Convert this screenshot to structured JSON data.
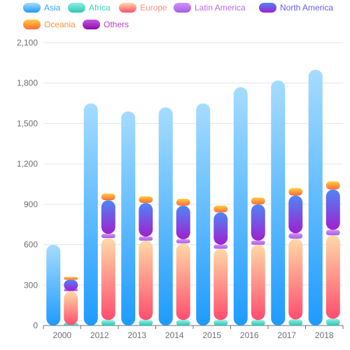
{
  "chart_data": {
    "type": "bar",
    "stacked_groups": true,
    "categories": [
      "2000",
      "2012",
      "2013",
      "2014",
      "2015",
      "2016",
      "2017",
      "2018"
    ],
    "ylim": [
      0,
      2100
    ],
    "yticks": [
      "0",
      "300",
      "600",
      "900",
      "1,200",
      "1,500",
      "1,800",
      "2,100"
    ],
    "grid": true,
    "legend_position": "top-left",
    "series": [
      {
        "name": "Asia",
        "stack": "a",
        "values": [
          600,
          1650,
          1590,
          1620,
          1650,
          1770,
          1820,
          1900
        ],
        "color_top": "#a5dcff",
        "color_bottom": "#1e9bff"
      },
      {
        "name": "Africa",
        "stack": "b",
        "values": [
          4,
          40,
          40,
          40,
          40,
          40,
          45,
          50
        ],
        "color_top": "#8ef0e2",
        "color_bottom": "#2fc5b6"
      },
      {
        "name": "Europe",
        "stack": "b",
        "values": [
          250,
          610,
          590,
          570,
          530,
          560,
          600,
          620
        ],
        "color_top": "#ffd9a6",
        "color_bottom": "#ff4e6e"
      },
      {
        "name": "Latin America",
        "stack": "b",
        "values": [
          6,
          30,
          30,
          30,
          30,
          30,
          40,
          40
        ],
        "color_top": "#d391f5",
        "color_bottom": "#a35ee8"
      },
      {
        "name": "North America",
        "stack": "b",
        "values": [
          80,
          250,
          250,
          250,
          240,
          270,
          280,
          300
        ],
        "color_top": "#4e86f5",
        "color_bottom": "#a020d0"
      },
      {
        "name": "Oceania",
        "stack": "b",
        "values": [
          20,
          50,
          50,
          50,
          50,
          50,
          55,
          60
        ],
        "color_top": "#ffcd3c",
        "color_bottom": "#ff6a3d"
      },
      {
        "name": "Others",
        "stack": "b",
        "values": [
          0,
          0,
          0,
          0,
          0,
          0,
          0,
          0
        ],
        "color_top": "#c855e0",
        "color_bottom": "#8a10a8"
      }
    ],
    "legend_label_colors": {
      "Asia": "#37a2ff",
      "Africa": "#38d6c4",
      "Europe": "#ff8c8c",
      "Latin America": "#b86be6",
      "North America": "#6a5df0",
      "Oceania": "#ff8f3a",
      "Others": "#b23fc7"
    }
  }
}
